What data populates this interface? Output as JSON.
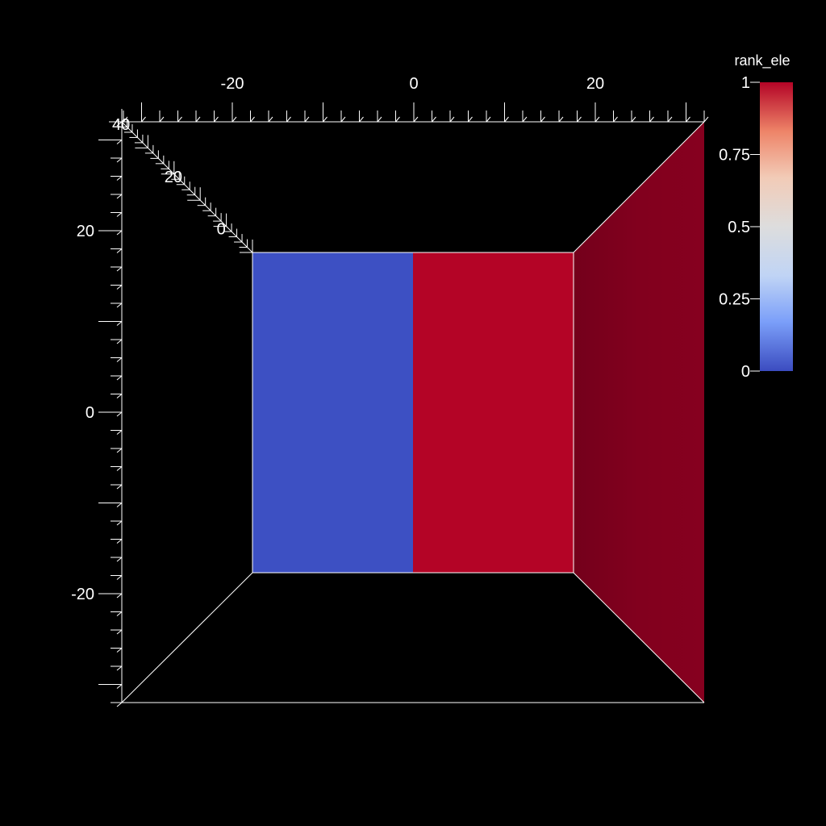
{
  "chart_data": {
    "type": "3d-scene",
    "title": "",
    "colorbar": {
      "title": "rank_ele",
      "range": [
        0,
        1
      ],
      "ticks": [
        {
          "value": 0,
          "label": "0"
        },
        {
          "value": 0.25,
          "label": "0.25"
        },
        {
          "value": 0.5,
          "label": "0.5"
        },
        {
          "value": 0.75,
          "label": "0.75"
        },
        {
          "value": 1,
          "label": "1"
        }
      ],
      "colormap": [
        "#3b4cc0",
        "#7b9ff9",
        "#c0d4f5",
        "#dddddd",
        "#f2cbb7",
        "#ee8468",
        "#b40426"
      ]
    },
    "axes": {
      "x": {
        "range": [
          -32,
          32
        ],
        "ticks": [
          {
            "value": -20,
            "label": "-20"
          },
          {
            "value": 0,
            "label": "0"
          },
          {
            "value": 20,
            "label": "20"
          }
        ]
      },
      "y": {
        "range": [
          -32,
          32
        ],
        "ticks": [
          {
            "value": 20,
            "label": "20"
          },
          {
            "value": 0,
            "label": "0"
          },
          {
            "value": -20,
            "label": "-20"
          }
        ]
      },
      "z": {
        "range": [
          -10,
          40
        ],
        "ticks": [
          {
            "value": 40,
            "label": "40"
          },
          {
            "value": 20,
            "label": "20"
          },
          {
            "value": 0,
            "label": "0"
          }
        ]
      }
    },
    "faces": [
      {
        "name": "left-half",
        "x_range": [
          -18,
          0
        ],
        "y_range": [
          -18,
          18
        ],
        "rank_ele": 0,
        "color": "#3b4cc0"
      },
      {
        "name": "right-half",
        "x_range": [
          0,
          18
        ],
        "y_range": [
          -18,
          18
        ],
        "rank_ele": 1,
        "color": "#b40426"
      },
      {
        "name": "side-face",
        "rank_ele": 1,
        "color": "#7e001c"
      }
    ]
  }
}
